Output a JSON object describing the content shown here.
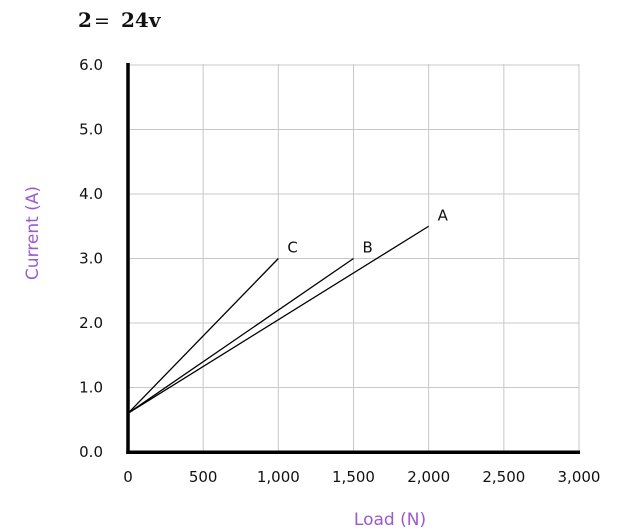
{
  "header": {
    "variable": "2",
    "equals": "=",
    "value": "24v"
  },
  "chart_data": {
    "type": "line",
    "xlabel": "Load (N)",
    "ylabel": "Current (A)",
    "xlim": [
      0,
      3000
    ],
    "ylim": [
      0,
      6
    ],
    "x_ticks": [
      0,
      500,
      1000,
      1500,
      2000,
      2500,
      3000
    ],
    "x_tick_labels": [
      "0",
      "500",
      "1,000",
      "1,500",
      "2,000",
      "2,500",
      "3,000"
    ],
    "y_ticks": [
      0,
      1,
      2,
      3,
      4,
      5,
      6
    ],
    "y_tick_labels": [
      "0.0",
      "1.0",
      "2.0",
      "3.0",
      "4.0",
      "5.0",
      "6.0"
    ],
    "grid": true,
    "axis_title_color": "#9b59d0",
    "series": [
      {
        "name": "A",
        "x": [
          0,
          2000
        ],
        "y": [
          0.6,
          3.5
        ]
      },
      {
        "name": "B",
        "x": [
          0,
          1500
        ],
        "y": [
          0.6,
          3.0
        ]
      },
      {
        "name": "C",
        "x": [
          0,
          1000
        ],
        "y": [
          0.6,
          3.0
        ]
      }
    ]
  }
}
